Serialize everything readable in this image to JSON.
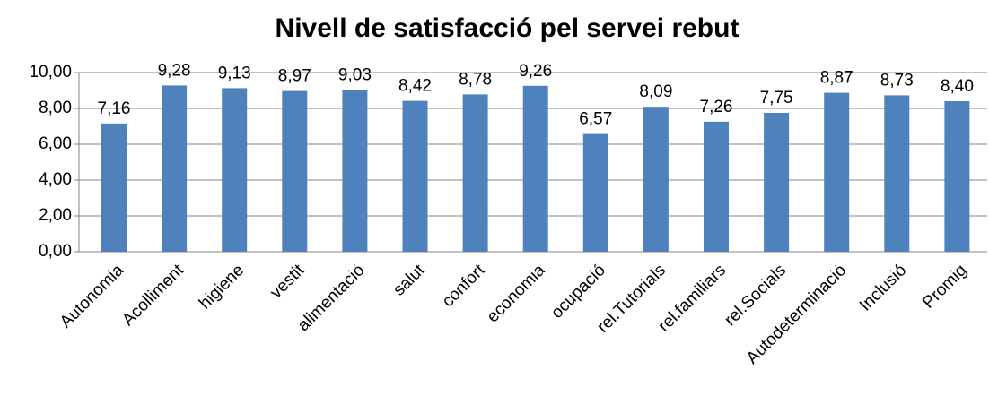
{
  "chart_data": {
    "type": "bar",
    "title": "Nivell de satisfacció pel servei rebut",
    "categories": [
      "Autonomia",
      "Acolliment",
      "higiene",
      "vestit",
      "alimentació",
      "salut",
      "confort",
      "economia",
      "ocupació",
      "rel.Tutorials",
      "rel.familiars",
      "rel.Socials",
      "Autodeterminació",
      "Inclusió",
      "Promig"
    ],
    "values": [
      7.16,
      9.28,
      9.13,
      8.97,
      9.03,
      8.42,
      8.78,
      9.26,
      6.57,
      8.09,
      7.26,
      7.75,
      8.87,
      8.73,
      8.4
    ],
    "value_labels": [
      "7,16",
      "9,28",
      "9,13",
      "8,97",
      "9,03",
      "8,42",
      "8,78",
      "9,26",
      "6,57",
      "8,09",
      "7,26",
      "7,75",
      "8,87",
      "8,73",
      "8,40"
    ],
    "color": "#4f81bd",
    "ylim": [
      0,
      10
    ],
    "yticks": [
      {
        "value": 0,
        "label": "0,00"
      },
      {
        "value": 2,
        "label": "2,00"
      },
      {
        "value": 4,
        "label": "4,00"
      },
      {
        "value": 6,
        "label": "6,00"
      },
      {
        "value": 8,
        "label": "8,00"
      },
      {
        "value": 10,
        "label": "10,00"
      }
    ],
    "grid": true
  }
}
